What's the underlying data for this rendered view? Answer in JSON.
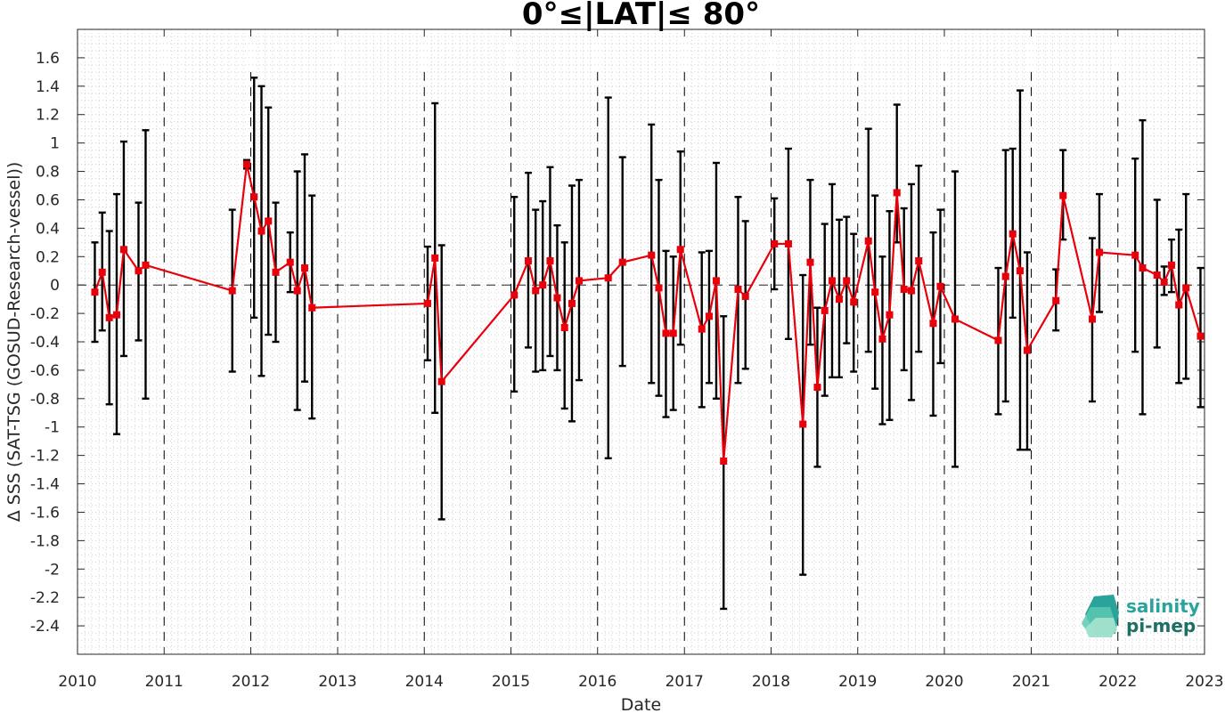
{
  "chart_data": {
    "type": "line",
    "title": "0°≤|LAT|≤ 80°",
    "xlabel": "Date",
    "ylabel": "Δ SSS (SAT-TSG (GOSUD-Research-vessel))",
    "xlim": [
      "2010-01-01",
      "2023-01-01"
    ],
    "ylim": [
      -2.6,
      1.8
    ],
    "x_ticks": [
      "2010",
      "2011",
      "2012",
      "2013",
      "2014",
      "2015",
      "2016",
      "2017",
      "2018",
      "2019",
      "2020",
      "2021",
      "2022",
      "2023"
    ],
    "y_ticks": [
      "1.6",
      "1.4",
      "1.2",
      "1",
      "0.8",
      "0.6",
      "0.4",
      "0.2",
      "0",
      "-0.2",
      "-0.4",
      "-0.6",
      "-0.8",
      "-1",
      "-1.2",
      "-1.4",
      "-1.6",
      "-1.8",
      "-2",
      "-2.2",
      "-2.4"
    ],
    "grid": "minor dotted",
    "year_dividers": "dashed vertical lines at each year",
    "zero_line": "dashed horizontal line at 0",
    "colors": {
      "series": "#e8000b",
      "errorbars": "#000000",
      "grid": "#c8c8c8"
    },
    "series": [
      {
        "x": [
          "2010-03",
          "2010-04",
          "2010-05",
          "2010-06",
          "2010-07",
          "2010-09",
          "2010-10",
          "2011-10",
          "2011-12",
          "2012-01",
          "2012-02",
          "2012-03",
          "2012-04",
          "2012-06",
          "2012-07",
          "2012-08",
          "2012-09",
          "2014-01",
          "2014-02",
          "2014-03",
          "2015-01",
          "2015-03",
          "2015-04",
          "2015-05",
          "2015-06",
          "2015-07",
          "2015-08",
          "2015-09",
          "2015-10",
          "2016-02",
          "2016-04",
          "2016-08",
          "2016-09",
          "2016-10",
          "2016-11",
          "2016-12",
          "2017-03",
          "2017-04",
          "2017-05",
          "2017-06",
          "2017-08",
          "2017-09",
          "2018-01",
          "2018-03",
          "2018-05",
          "2018-06",
          "2018-07",
          "2018-08",
          "2018-09",
          "2018-10",
          "2018-11",
          "2018-12",
          "2019-02",
          "2019-03",
          "2019-04",
          "2019-05",
          "2019-06",
          "2019-07",
          "2019-08",
          "2019-09",
          "2019-11",
          "2019-12",
          "2020-02",
          "2020-08",
          "2020-09",
          "2020-10",
          "2020-11",
          "2020-12",
          "2021-04",
          "2021-05",
          "2021-09",
          "2021-10",
          "2022-03",
          "2022-04",
          "2022-06",
          "2022-07",
          "2022-08",
          "2022-09",
          "2022-10",
          "2022-12"
        ],
        "y": [
          -0.05,
          0.09,
          -0.23,
          -0.21,
          0.25,
          0.1,
          0.14,
          -0.04,
          0.85,
          0.62,
          0.38,
          0.45,
          0.09,
          0.16,
          -0.04,
          0.12,
          -0.16,
          -0.13,
          0.19,
          -0.68,
          -0.07,
          0.17,
          -0.04,
          0.0,
          0.17,
          -0.09,
          -0.3,
          -0.13,
          0.03,
          0.05,
          0.16,
          0.21,
          -0.02,
          -0.34,
          -0.34,
          0.25,
          -0.31,
          -0.22,
          0.03,
          -1.24,
          -0.03,
          -0.08,
          0.29,
          0.29,
          -0.98,
          0.16,
          -0.72,
          -0.18,
          0.03,
          -0.1,
          0.03,
          -0.12,
          0.31,
          -0.05,
          -0.38,
          -0.21,
          0.65,
          -0.03,
          -0.04,
          0.17,
          -0.27,
          -0.01,
          -0.24,
          -0.39,
          0.06,
          0.36,
          0.1,
          -0.46,
          -0.11,
          0.63,
          -0.24,
          0.23,
          0.21,
          0.12,
          0.07,
          0.02,
          0.14,
          -0.14,
          -0.02,
          -0.36
        ],
        "err_low": [
          -0.4,
          -0.32,
          -0.84,
          -1.05,
          -0.5,
          -0.39,
          -0.8,
          -0.61,
          0.82,
          -0.23,
          -0.64,
          -0.35,
          -0.4,
          -0.05,
          -0.88,
          -0.68,
          -0.94,
          -0.53,
          -0.9,
          -1.65,
          -0.75,
          -0.44,
          -0.61,
          -0.6,
          -0.5,
          -0.6,
          -0.87,
          -0.96,
          -0.67,
          -1.22,
          -0.57,
          -0.69,
          -0.78,
          -0.93,
          -0.88,
          -0.42,
          -0.86,
          -0.69,
          -0.8,
          -2.28,
          -0.69,
          -0.59,
          -0.03,
          -0.38,
          -2.04,
          -0.42,
          -1.28,
          -0.78,
          -0.65,
          -0.65,
          -0.41,
          -0.61,
          -0.47,
          -0.73,
          -0.98,
          -0.95,
          0.3,
          -0.6,
          -0.81,
          -0.47,
          -0.92,
          -0.55,
          -1.28,
          -0.91,
          -0.82,
          -0.23,
          -1.16,
          -1.16,
          -0.32,
          0.32,
          -0.82,
          -0.19,
          -0.47,
          -0.91,
          -0.44,
          -0.07,
          -0.05,
          -0.69,
          -0.66,
          -0.86
        ],
        "err_high": [
          0.3,
          0.51,
          0.38,
          0.64,
          1.01,
          0.58,
          1.09,
          0.53,
          0.88,
          1.46,
          1.4,
          1.25,
          0.58,
          0.37,
          0.8,
          0.92,
          0.63,
          0.27,
          1.28,
          0.28,
          0.62,
          0.79,
          0.53,
          0.59,
          0.83,
          0.42,
          0.3,
          0.7,
          0.74,
          1.32,
          0.9,
          1.13,
          0.74,
          0.24,
          0.2,
          0.94,
          0.23,
          0.24,
          0.86,
          -0.22,
          0.62,
          0.45,
          0.61,
          0.96,
          0.07,
          0.74,
          -0.16,
          0.43,
          0.71,
          0.46,
          0.48,
          0.36,
          1.1,
          0.63,
          0.2,
          0.52,
          1.27,
          0.54,
          0.71,
          0.84,
          0.37,
          0.53,
          0.8,
          0.12,
          0.95,
          0.96,
          1.37,
          0.23,
          0.11,
          0.95,
          0.33,
          0.64,
          0.89,
          1.16,
          0.6,
          0.13,
          0.32,
          0.39,
          0.64,
          0.12
        ]
      }
    ]
  },
  "logo": {
    "line1": "salinity",
    "line2": "pi-mep",
    "color1": "#2aa39b",
    "color2": "#1d6e63"
  }
}
